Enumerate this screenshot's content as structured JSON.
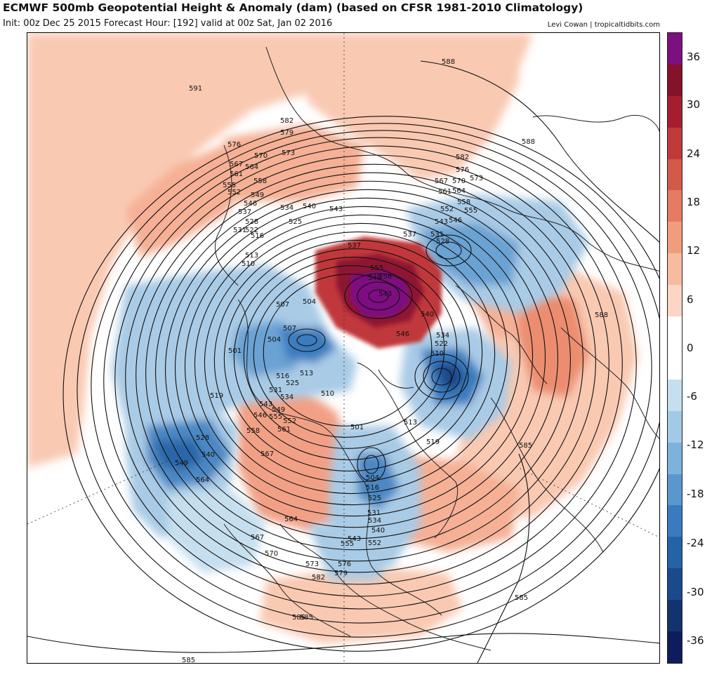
{
  "header": {
    "title": "ECMWF 500mb Geopotential Height & Anomaly (dam) (based on CFSR 1981-2010 Climatology)",
    "subtitle": "Init: 00z Dec 25 2015   Forecast Hour: [192]   valid at 00z Sat, Jan 02 2016",
    "credit": "Levi Cowan | tropicaltidbits.com"
  },
  "colorbar": {
    "tick_labels": [
      "36",
      "30",
      "24",
      "18",
      "12",
      "6",
      "0",
      "-6",
      "-12",
      "-18",
      "-24",
      "-30",
      "-36"
    ],
    "bins_bottom_to_top": [
      "#0d1c5c",
      "#13336e",
      "#1b4a8c",
      "#2563a6",
      "#3a7bbf",
      "#5a97cf",
      "#7cb2dc",
      "#a2cae6",
      "#c6dfef",
      "#ffffff",
      "#ffffff",
      "#fbd6c4",
      "#f8bba0",
      "#f29c7e",
      "#e47b62",
      "#d35a4b",
      "#c03a3a",
      "#a51e30",
      "#86112a",
      "#7d1080"
    ]
  },
  "map": {
    "contour_labels": [
      {
        "text": "588"
      },
      {
        "text": "591"
      },
      {
        "text": "582"
      },
      {
        "text": "579"
      },
      {
        "text": "576"
      },
      {
        "text": "570"
      },
      {
        "text": "573"
      },
      {
        "text": "567"
      },
      {
        "text": "564"
      },
      {
        "text": "561"
      },
      {
        "text": "555"
      },
      {
        "text": "558"
      },
      {
        "text": "552"
      },
      {
        "text": "549"
      },
      {
        "text": "546"
      },
      {
        "text": "537"
      },
      {
        "text": "534"
      },
      {
        "text": "540"
      },
      {
        "text": "543"
      },
      {
        "text": "528"
      },
      {
        "text": "525"
      },
      {
        "text": "522"
      },
      {
        "text": "531"
      },
      {
        "text": "516"
      },
      {
        "text": "513"
      },
      {
        "text": "510"
      },
      {
        "text": "537"
      },
      {
        "text": "588"
      },
      {
        "text": "582"
      },
      {
        "text": "576"
      },
      {
        "text": "567"
      },
      {
        "text": "570"
      },
      {
        "text": "573"
      },
      {
        "text": "561"
      },
      {
        "text": "564"
      },
      {
        "text": "558"
      },
      {
        "text": "552"
      },
      {
        "text": "555"
      },
      {
        "text": "543"
      },
      {
        "text": "546"
      },
      {
        "text": "537"
      },
      {
        "text": "531"
      },
      {
        "text": "528"
      },
      {
        "text": "558"
      },
      {
        "text": "555"
      },
      {
        "text": "549"
      },
      {
        "text": "543"
      },
      {
        "text": "546"
      },
      {
        "text": "540"
      },
      {
        "text": "534"
      },
      {
        "text": "522"
      },
      {
        "text": "510"
      },
      {
        "text": "507"
      },
      {
        "text": "504"
      },
      {
        "text": "504"
      },
      {
        "text": "501"
      },
      {
        "text": "507"
      },
      {
        "text": "513"
      },
      {
        "text": "516"
      },
      {
        "text": "525"
      },
      {
        "text": "519"
      },
      {
        "text": "531"
      },
      {
        "text": "534"
      },
      {
        "text": "543"
      },
      {
        "text": "546"
      },
      {
        "text": "549"
      },
      {
        "text": "552"
      },
      {
        "text": "555"
      },
      {
        "text": "558"
      },
      {
        "text": "561"
      },
      {
        "text": "567"
      },
      {
        "text": "510"
      },
      {
        "text": "501"
      },
      {
        "text": "513"
      },
      {
        "text": "519"
      },
      {
        "text": "528"
      },
      {
        "text": "540"
      },
      {
        "text": "549"
      },
      {
        "text": "564"
      },
      {
        "text": "504"
      },
      {
        "text": "516"
      },
      {
        "text": "525"
      },
      {
        "text": "531"
      },
      {
        "text": "534"
      },
      {
        "text": "540"
      },
      {
        "text": "543"
      },
      {
        "text": "552"
      },
      {
        "text": "555"
      },
      {
        "text": "564"
      },
      {
        "text": "567"
      },
      {
        "text": "570"
      },
      {
        "text": "573"
      },
      {
        "text": "576"
      },
      {
        "text": "579"
      },
      {
        "text": "582"
      },
      {
        "text": "585"
      },
      {
        "text": "588"
      },
      {
        "text": "585"
      },
      {
        "text": "585"
      },
      {
        "text": "585"
      },
      {
        "text": "585"
      },
      {
        "text": "564"
      }
    ]
  }
}
